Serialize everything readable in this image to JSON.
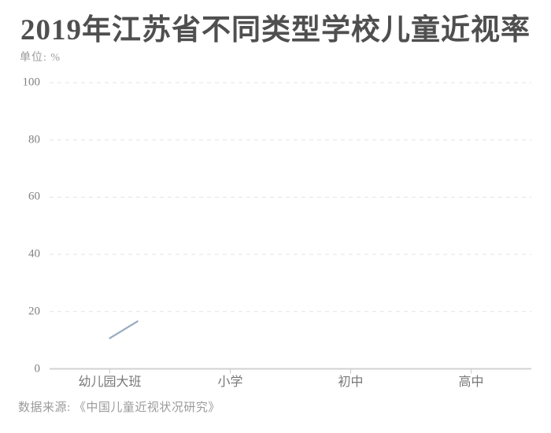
{
  "page": {
    "background": "#ffffff"
  },
  "chart_data": {
    "type": "line",
    "title": "2019年江苏省不同类型学校儿童近视率",
    "unit_label": "单位: %",
    "source": "数据来源: 《中国儿童近视状况研究》",
    "categories": [
      "幼儿园大班",
      "小学",
      "初中",
      "高中"
    ],
    "ylim": [
      0,
      100
    ],
    "yticks": [
      0,
      20,
      40,
      60,
      80,
      100
    ],
    "grid": "horizontal-dashed",
    "legend": "none",
    "note": "line chart captured mid-draw: only the first segment of the series is rendered, starting at 幼儿园大班 and rising toward 小学",
    "series": [
      {
        "name": "近视率",
        "color": "#98abbe",
        "visible_points": [
          {
            "category": "幼儿园大班",
            "category_index": 0,
            "category_frac": 0.0,
            "value": 10.7
          },
          {
            "category": "幼儿园大班→小学 (partial)",
            "category_index": 0,
            "category_frac": 0.23,
            "value": 16.6
          }
        ]
      }
    ],
    "colors": {
      "title": "#4f4f4f",
      "grid": "#e3e3e3",
      "axis": "#d2d2d2",
      "tick": "#c9c9c9",
      "y_labels": "#828282",
      "x_labels": "#787878",
      "muted_text": "#9b9b9b",
      "line": "#98abbe"
    }
  }
}
